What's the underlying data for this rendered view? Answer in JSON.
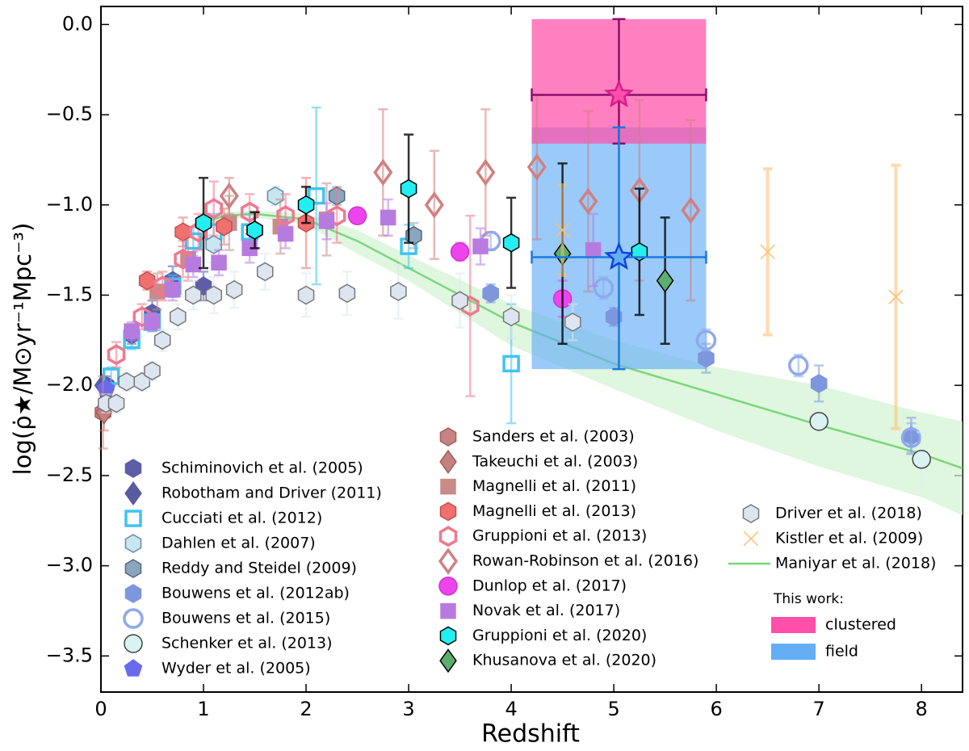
{
  "chart_data": {
    "type": "scatter",
    "xlabel": "Redshift",
    "ylabel": "log(ρ̇★/M⊙yr⁻¹Mpc⁻³)",
    "xlim": [
      0,
      8.4
    ],
    "ylim": [
      -3.7,
      0.1
    ],
    "xticks": [
      0,
      1,
      2,
      3,
      4,
      5,
      6,
      7,
      8
    ],
    "yticks": [
      {
        "value": 0,
        "label": "0.0"
      },
      {
        "value": -0.5,
        "label": "−0.5"
      },
      {
        "value": -1,
        "label": "−1.0"
      },
      {
        "value": -1.5,
        "label": "−1.5"
      },
      {
        "value": -2,
        "label": "−2.0"
      },
      {
        "value": -2.5,
        "label": "−2.5"
      },
      {
        "value": -3,
        "label": "−3.0"
      },
      {
        "value": -3.5,
        "label": "−3.5"
      }
    ],
    "series": [
      {
        "name": "Schiminovich et al. (2005)",
        "color": "#5d5da8",
        "edgecolor": "#5d5da8",
        "marker": "hexagon",
        "filled": true,
        "x": [
          0.05,
          0.3,
          0.5,
          0.7,
          1.0
        ],
        "values": [
          -2.0,
          -1.72,
          -1.6,
          -1.42,
          -1.45
        ],
        "errors": [
          0.05,
          0.05,
          0.07,
          0.08,
          0.08
        ]
      },
      {
        "name": "Robotham and Driver (2011)",
        "color": "#5a5aa0",
        "edgecolor": "#5a5aa0",
        "marker": "diamond",
        "filled": true,
        "x": [
          0.02
        ],
        "values": [
          -2.0
        ]
      },
      {
        "name": "Cucciati et al. (2012)",
        "color": "#3fc4f2",
        "edgecolor": "#3fc4f2",
        "marker": "square",
        "filled": false,
        "x": [
          0.1,
          0.3,
          0.5,
          0.7,
          0.9,
          1.1,
          1.45,
          2.1,
          3.0,
          4.0
        ],
        "values": [
          -1.95,
          -1.75,
          -1.65,
          -1.45,
          -1.2,
          -1.15,
          -1.15,
          -0.95,
          -1.23,
          -1.88
        ],
        "errors": [
          0.05,
          0.05,
          0.05,
          0.06,
          0.08,
          0.1,
          0.1,
          0.49,
          0.12,
          0.33
        ]
      },
      {
        "name": "Dahlen et al. (2007)",
        "color": "#c8e6f2",
        "edgecolor": "#6a8a9a",
        "marker": "hexagon",
        "filled": true,
        "x": [
          1.1,
          1.7
        ],
        "values": [
          -1.22,
          -0.95
        ],
        "errors": [
          0.1,
          0.05
        ]
      },
      {
        "name": "Reddy and Steidel (2009)",
        "color": "#8aa6be",
        "edgecolor": "#556677",
        "marker": "hexagon",
        "filled": true,
        "x": [
          2.3,
          3.05
        ],
        "values": [
          -0.95,
          -1.17
        ],
        "errors": [
          0.05,
          0.07
        ]
      },
      {
        "name": "Bouwens et al. (2012ab)",
        "color": "#7d96dc",
        "edgecolor": "#7d96dc",
        "marker": "hexagon",
        "filled": true,
        "x": [
          3.8,
          5.0,
          5.9,
          7.0,
          7.9
        ],
        "values": [
          -1.49,
          -1.62,
          -1.85,
          -1.99,
          -2.28
        ],
        "errors": [
          0.05,
          0.05,
          0.08,
          0.1,
          0.1
        ]
      },
      {
        "name": "Bouwens et al. (2015)",
        "color": "#8fa9ec",
        "edgecolor": "#8fa9ec",
        "marker": "circle",
        "filled": false,
        "x": [
          3.8,
          4.9,
          5.9,
          6.8,
          7.9
        ],
        "values": [
          -1.2,
          -1.46,
          -1.75,
          -1.89,
          -2.29
        ],
        "errors": [
          0.05,
          0.06,
          0.06,
          0.06,
          0.08
        ]
      },
      {
        "name": "Schenker et al. (2013)",
        "color": "#d9f2f2",
        "edgecolor": "#444444",
        "marker": "circle",
        "filled": true,
        "x": [
          7.0,
          8.0
        ],
        "values": [
          -2.2,
          -2.41
        ],
        "errors": [
          0.1,
          0.15
        ]
      },
      {
        "name": "Wyder et al. (2005)",
        "color": "#6a6aee",
        "edgecolor": "#6a6aee",
        "marker": "pentagon",
        "filled": true,
        "x": [
          0.05
        ],
        "values": [
          -2.02
        ]
      },
      {
        "name": "Sanders et al. (2003)",
        "color": "#c98282",
        "edgecolor": "#a06060",
        "marker": "hexagon",
        "filled": true,
        "x": [
          0.02
        ],
        "values": [
          -2.15
        ],
        "errors": [
          0.2
        ]
      },
      {
        "name": "Takeuchi et al. (2003)",
        "color": "#c58080",
        "edgecolor": "#a06060",
        "marker": "diamond",
        "filled": true,
        "x": [
          0.03
        ],
        "values": [
          -2.15
        ],
        "errors": [
          0.1
        ]
      },
      {
        "name": "Magnelli et al. (2011)",
        "color": "#c98a8a",
        "edgecolor": "#c98a8a",
        "marker": "square",
        "filled": true,
        "x": [
          0.55,
          0.85,
          1.25,
          1.75,
          2.2
        ],
        "values": [
          -1.48,
          -1.3,
          -1.1,
          -1.12,
          -1.08
        ],
        "errors": [
          0.1,
          0.12,
          0.15,
          0.15,
          0.2
        ]
      },
      {
        "name": "Magnelli et al. (2013)",
        "color": "#f07070",
        "edgecolor": "#c05050",
        "marker": "hexagon",
        "filled": true,
        "x": [
          0.45,
          0.8,
          1.2,
          1.5,
          2.0
        ],
        "values": [
          -1.42,
          -1.15,
          -1.12,
          -1.14,
          -1.1
        ],
        "errors": [
          0.05,
          0.08,
          0.1,
          0.1,
          0.25
        ]
      },
      {
        "name": "Gruppioni et al. (2013)",
        "color": "#f07890",
        "edgecolor": "#f07890",
        "marker": "hexagon",
        "filled": false,
        "x": [
          0.15,
          0.4,
          0.6,
          0.8,
          0.95,
          1.1,
          1.45,
          1.8,
          2.3,
          3.6
        ],
        "values": [
          -1.83,
          -1.62,
          -1.45,
          -1.3,
          -1.15,
          -1.02,
          -1.04,
          -1.06,
          -1.06,
          -1.56
        ],
        "errors": [
          0.07,
          0.07,
          0.08,
          0.1,
          0.1,
          0.15,
          0.1,
          0.12,
          0.15,
          0.5
        ]
      },
      {
        "name": "Rowan-Robinson et al. (2016)",
        "color": "#d08080",
        "edgecolor": "#d08080",
        "marker": "diamond",
        "filled": false,
        "x": [
          1.25,
          2.75,
          3.25,
          3.75,
          4.25,
          4.75,
          5.25,
          5.75
        ],
        "values": [
          -0.95,
          -0.82,
          -1.0,
          -0.82,
          -0.79,
          -0.98,
          -0.92,
          -1.03
        ],
        "errors": [
          0.1,
          0.35,
          0.3,
          0.35,
          0.4,
          0.5,
          0.5,
          0.5
        ]
      },
      {
        "name": "Dunlop et al. (2017)",
        "color": "#ee44ee",
        "edgecolor": "#cc33cc",
        "marker": "circle",
        "filled": true,
        "x": [
          2.5,
          3.5,
          4.5
        ],
        "values": [
          -1.06,
          -1.26,
          -1.52
        ],
        "errors": [
          0.03,
          0.05,
          0.1
        ]
      },
      {
        "name": "Novak et al. (2017)",
        "color": "#b77be0",
        "edgecolor": "#b77be0",
        "marker": "square",
        "filled": true,
        "x": [
          0.3,
          0.5,
          0.7,
          0.9,
          1.15,
          1.45,
          1.8,
          2.2,
          2.8,
          3.7,
          4.8
        ],
        "values": [
          -1.7,
          -1.65,
          -1.47,
          -1.33,
          -1.32,
          -1.24,
          -1.16,
          -1.09,
          -1.07,
          -1.23,
          -1.25
        ],
        "errors": [
          0.05,
          0.05,
          0.06,
          0.07,
          0.07,
          0.08,
          0.08,
          0.1,
          0.1,
          0.1,
          0.2
        ]
      },
      {
        "name": "Gruppioni et al. (2020)",
        "color": "#22f0f0",
        "edgecolor": "#000000",
        "marker": "hexagon",
        "filled": true,
        "x": [
          1.0,
          1.5,
          2.0,
          3.0,
          4.0,
          5.25
        ],
        "values": [
          -1.1,
          -1.14,
          -1.0,
          -0.91,
          -1.21,
          -1.26
        ],
        "errors": [
          0.25,
          0.1,
          0.1,
          0.3,
          0.25,
          0.35
        ]
      },
      {
        "name": "Khusanova et al. (2020)",
        "color": "#5cae6e",
        "edgecolor": "#000000",
        "marker": "diamond",
        "filled": true,
        "x": [
          4.5,
          5.5
        ],
        "values": [
          -1.27,
          -1.42
        ],
        "errors": [
          0.5,
          0.35
        ]
      },
      {
        "name": "Driver et al. (2018)",
        "color": "#dde6f0",
        "edgecolor": "#777777",
        "marker": "hexagon",
        "filled": true,
        "x": [
          0.05,
          0.15,
          0.25,
          0.4,
          0.5,
          0.6,
          0.75,
          0.9,
          1.1,
          1.3,
          1.6,
          2.0,
          2.4,
          2.9,
          3.5,
          4.0,
          4.6
        ],
        "values": [
          -2.1,
          -2.1,
          -1.98,
          -1.98,
          -1.92,
          -1.75,
          -1.62,
          -1.5,
          -1.5,
          -1.47,
          -1.37,
          -1.5,
          -1.49,
          -1.48,
          -1.53,
          -1.62,
          -1.65
        ],
        "errors": [
          0.05,
          0.05,
          0.05,
          0.05,
          0.05,
          0.06,
          0.07,
          0.08,
          0.1,
          0.1,
          0.1,
          0.12,
          0.12,
          0.15,
          0.15,
          0.12,
          0.1
        ]
      },
      {
        "name": "Kistler et al. (2009)",
        "color": "#ffbe6e",
        "edgecolor": "#ffbe6e",
        "marker": "x",
        "filled": true,
        "x": [
          4.5,
          6.5,
          7.75
        ],
        "values": [
          -1.14,
          -1.26,
          -1.51
        ],
        "errors": [
          0.25,
          0.46,
          0.73
        ]
      },
      {
        "name": "Maniyar et al. (2018)",
        "color": "#7cd67c",
        "marker": "line",
        "band_color": "#d2f2d2",
        "x": [
          0.9,
          1.2,
          1.5,
          2.0,
          2.5,
          3.0,
          4.0,
          5.0,
          6.0,
          7.0,
          8.0,
          8.4
        ],
        "values": [
          -1.12,
          -1.06,
          -1.05,
          -1.08,
          -1.2,
          -1.35,
          -1.65,
          -1.88,
          -2.05,
          -2.22,
          -2.38,
          -2.46
        ],
        "band_low": [
          -1.14,
          -1.08,
          -1.07,
          -1.11,
          -1.27,
          -1.42,
          -1.78,
          -2.02,
          -2.25,
          -2.45,
          -2.62,
          -2.72
        ],
        "band_high": [
          -1.1,
          -1.04,
          -1.03,
          -1.05,
          -1.14,
          -1.28,
          -1.55,
          -1.75,
          -1.9,
          -2.0,
          -2.15,
          -2.2
        ]
      }
    ],
    "this_work": {
      "label": "This work:",
      "entries": [
        {
          "name": "clustered",
          "color": "#ff4fa8",
          "star_color": "#d81b8c",
          "x": 5.05,
          "value": -0.39,
          "x_range": [
            4.2,
            5.9
          ],
          "y_range": [
            -0.66,
            0.03
          ]
        },
        {
          "name": "field",
          "color": "#64aef6",
          "star_color": "#1040e0",
          "x": 5.05,
          "value": -1.29,
          "x_range": [
            4.2,
            5.9
          ],
          "y_range": [
            -1.91,
            -0.57
          ]
        }
      ]
    }
  }
}
